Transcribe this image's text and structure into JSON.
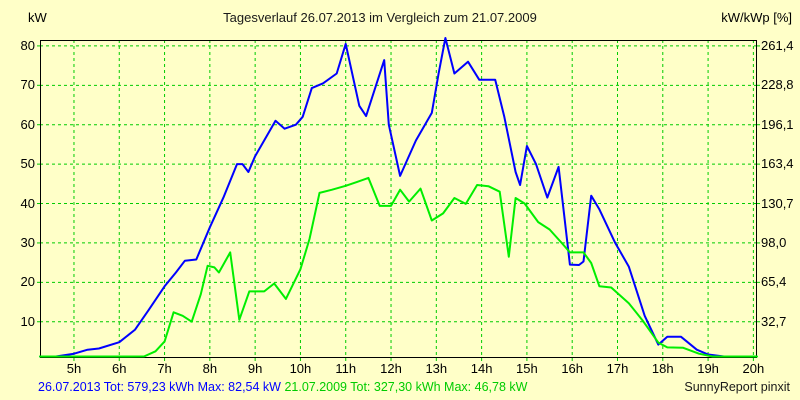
{
  "page": {
    "background_color": "#FFFFC8",
    "footer": {
      "series1_stats": "26.07.2013 Tot: 579,23 kWh Max: 82,54 kW",
      "series2_stats": "21.07.2009 Tot: 327,30 kWh Max: 46,78 kW",
      "brand": "SunnyReport pinxit"
    }
  },
  "chart_data": {
    "type": "line",
    "title": "Tagesverlauf 26.07.2013 im Vergleich zum 21.07.2009",
    "left_axis": {
      "label": "kW",
      "ticks": [
        80,
        70,
        60,
        50,
        40,
        30,
        20,
        10
      ]
    },
    "right_axis": {
      "label": "kW/kWp [%]",
      "ticks": [
        "261,4",
        "228,8",
        "196,1",
        "163,4",
        "130,7",
        "98,0",
        "65,4",
        "32,7"
      ]
    },
    "x_axis": {
      "hours": [
        5,
        6,
        7,
        8,
        9,
        10,
        11,
        12,
        13,
        14,
        15,
        16,
        17,
        18,
        19,
        20
      ],
      "labels": [
        "5h",
        "6h",
        "7h",
        "8h",
        "9h",
        "10h",
        "11h",
        "12h",
        "13h",
        "14h",
        "15h",
        "16h",
        "17h",
        "18h",
        "19h",
        "20h"
      ]
    },
    "xlim": [
      4.25,
      20.08
    ],
    "ylim": [
      0.8,
      81.5
    ],
    "grid": true,
    "grid_color": "#00CC00",
    "axis_color": "#000000",
    "legend_position": "none",
    "series": [
      {
        "name": "26.07.2013",
        "color": "#0000FF",
        "total": "579,23 kWh",
        "max": "82,54 kW",
        "points": [
          [
            4.25,
            0.8
          ],
          [
            4.6,
            0.9
          ],
          [
            5.0,
            1.9
          ],
          [
            5.3,
            2.9
          ],
          [
            5.55,
            3.2
          ],
          [
            6.0,
            4.8
          ],
          [
            6.35,
            8.0
          ],
          [
            6.65,
            13.0
          ],
          [
            7.0,
            19.0
          ],
          [
            7.25,
            22.5
          ],
          [
            7.45,
            25.5
          ],
          [
            7.7,
            25.8
          ],
          [
            8.0,
            34.0
          ],
          [
            8.3,
            41.5
          ],
          [
            8.6,
            50.0
          ],
          [
            8.72,
            50.0
          ],
          [
            8.85,
            48.0
          ],
          [
            9.0,
            52.0
          ],
          [
            9.45,
            61.0
          ],
          [
            9.65,
            59.0
          ],
          [
            9.9,
            60.0
          ],
          [
            10.05,
            62.0
          ],
          [
            10.25,
            69.3
          ],
          [
            10.5,
            70.5
          ],
          [
            10.8,
            73.0
          ],
          [
            11.0,
            80.5
          ],
          [
            11.3,
            64.8
          ],
          [
            11.45,
            62.2
          ],
          [
            11.85,
            76.4
          ],
          [
            11.95,
            60.0
          ],
          [
            12.2,
            47.0
          ],
          [
            12.55,
            56.0
          ],
          [
            12.9,
            63.0
          ],
          [
            13.05,
            73.0
          ],
          [
            13.2,
            82.0
          ],
          [
            13.4,
            73.0
          ],
          [
            13.7,
            76.0
          ],
          [
            13.95,
            71.4
          ],
          [
            14.3,
            71.4
          ],
          [
            14.5,
            62.0
          ],
          [
            14.75,
            48.0
          ],
          [
            14.85,
            44.7
          ],
          [
            15.0,
            54.6
          ],
          [
            15.2,
            50.0
          ],
          [
            15.45,
            41.5
          ],
          [
            15.7,
            49.3
          ],
          [
            15.95,
            24.5
          ],
          [
            16.15,
            24.4
          ],
          [
            16.25,
            25.3
          ],
          [
            16.42,
            42.0
          ],
          [
            16.6,
            38.5
          ],
          [
            16.95,
            30.0
          ],
          [
            17.25,
            24.0
          ],
          [
            17.6,
            11.5
          ],
          [
            17.9,
            4.2
          ],
          [
            18.1,
            6.2
          ],
          [
            18.4,
            6.2
          ],
          [
            18.75,
            2.9
          ],
          [
            19.0,
            1.7
          ],
          [
            19.35,
            1.0
          ],
          [
            19.7,
            0.5
          ],
          [
            20.05,
            0.4
          ]
        ]
      },
      {
        "name": "21.07.2009",
        "color": "#00EE00",
        "total": "327,30 kWh",
        "max": "46,78 kW",
        "points": [
          [
            4.25,
            0.2
          ],
          [
            5.5,
            0.3
          ],
          [
            6.0,
            0.5
          ],
          [
            6.55,
            1.2
          ],
          [
            6.8,
            2.5
          ],
          [
            7.0,
            5.0
          ],
          [
            7.2,
            12.4
          ],
          [
            7.4,
            11.5
          ],
          [
            7.6,
            10.0
          ],
          [
            7.8,
            17.0
          ],
          [
            7.95,
            24.2
          ],
          [
            8.1,
            23.8
          ],
          [
            8.2,
            22.5
          ],
          [
            8.45,
            27.6
          ],
          [
            8.65,
            10.5
          ],
          [
            8.87,
            17.7
          ],
          [
            9.2,
            17.7
          ],
          [
            9.42,
            19.7
          ],
          [
            9.68,
            15.8
          ],
          [
            10.0,
            23.3
          ],
          [
            10.2,
            31.0
          ],
          [
            10.42,
            42.7
          ],
          [
            10.7,
            43.5
          ],
          [
            11.0,
            44.5
          ],
          [
            11.25,
            45.5
          ],
          [
            11.5,
            46.5
          ],
          [
            11.75,
            39.4
          ],
          [
            12.0,
            39.4
          ],
          [
            12.2,
            43.5
          ],
          [
            12.4,
            40.5
          ],
          [
            12.65,
            43.8
          ],
          [
            12.9,
            35.7
          ],
          [
            13.15,
            37.5
          ],
          [
            13.4,
            41.4
          ],
          [
            13.65,
            39.9
          ],
          [
            13.9,
            44.7
          ],
          [
            14.15,
            44.4
          ],
          [
            14.4,
            43.0
          ],
          [
            14.6,
            26.5
          ],
          [
            14.75,
            41.4
          ],
          [
            14.95,
            40.0
          ],
          [
            15.25,
            35.3
          ],
          [
            15.5,
            33.4
          ],
          [
            15.8,
            29.6
          ],
          [
            15.95,
            27.6
          ],
          [
            16.25,
            27.6
          ],
          [
            16.42,
            24.9
          ],
          [
            16.6,
            19.0
          ],
          [
            16.86,
            18.7
          ],
          [
            17.25,
            14.7
          ],
          [
            17.55,
            10.4
          ],
          [
            17.9,
            4.7
          ],
          [
            18.1,
            3.5
          ],
          [
            18.45,
            3.4
          ],
          [
            18.8,
            1.9
          ],
          [
            19.1,
            1.0
          ],
          [
            19.5,
            0.8
          ],
          [
            20.08,
            0.8
          ]
        ]
      }
    ]
  }
}
